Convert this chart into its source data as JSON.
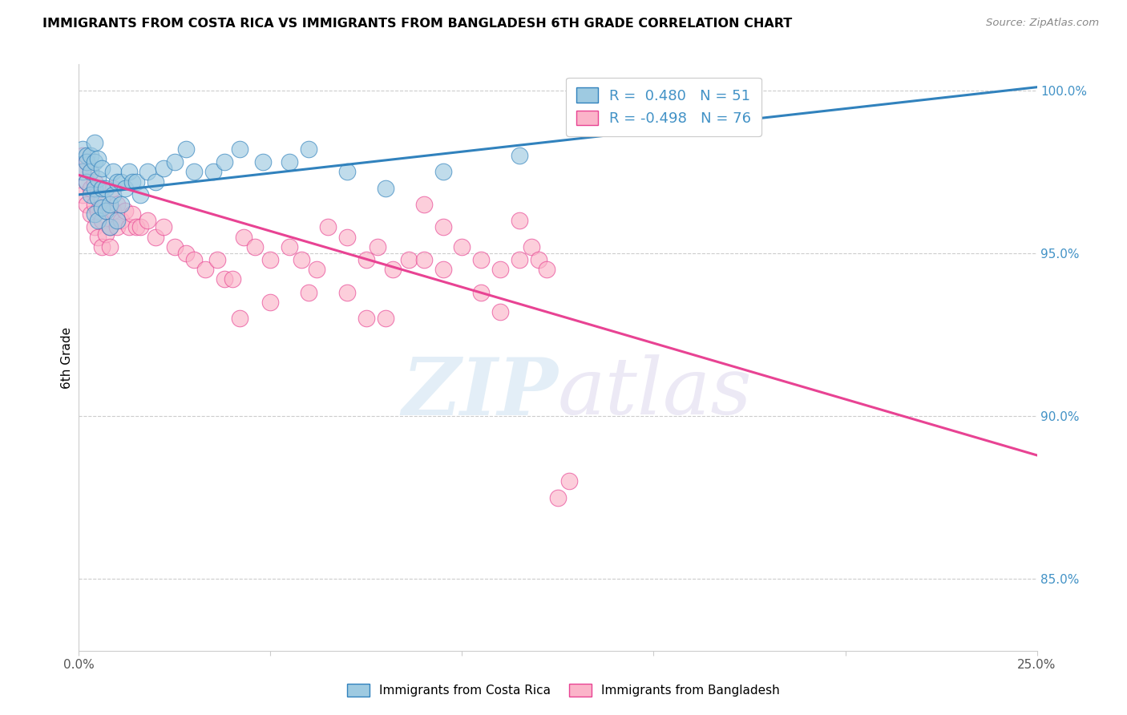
{
  "title": "IMMIGRANTS FROM COSTA RICA VS IMMIGRANTS FROM BANGLADESH 6TH GRADE CORRELATION CHART",
  "source": "Source: ZipAtlas.com",
  "ylabel": "6th Grade",
  "yaxis_values": [
    1.0,
    0.95,
    0.9,
    0.85
  ],
  "xmin": 0.0,
  "xmax": 0.25,
  "ymin": 0.828,
  "ymax": 1.008,
  "legend1_r": "0.480",
  "legend1_n": "51",
  "legend2_r": "-0.498",
  "legend2_n": "76",
  "color_blue": "#9ecae1",
  "color_pink": "#fbb4c9",
  "color_blue_line": "#3182bd",
  "color_pink_line": "#e84393",
  "watermark_zip": "ZIP",
  "watermark_atlas": "atlas",
  "costa_rica_x": [
    0.001,
    0.001,
    0.002,
    0.002,
    0.002,
    0.003,
    0.003,
    0.003,
    0.004,
    0.004,
    0.004,
    0.004,
    0.005,
    0.005,
    0.005,
    0.005,
    0.006,
    0.006,
    0.006,
    0.007,
    0.007,
    0.008,
    0.008,
    0.009,
    0.009,
    0.01,
    0.01,
    0.011,
    0.011,
    0.012,
    0.013,
    0.014,
    0.015,
    0.016,
    0.018,
    0.02,
    0.022,
    0.025,
    0.028,
    0.03,
    0.035,
    0.038,
    0.042,
    0.048,
    0.055,
    0.06,
    0.07,
    0.08,
    0.095,
    0.115,
    0.16
  ],
  "costa_rica_y": [
    0.975,
    0.982,
    0.972,
    0.98,
    0.978,
    0.968,
    0.975,
    0.98,
    0.962,
    0.97,
    0.978,
    0.984,
    0.96,
    0.967,
    0.973,
    0.979,
    0.964,
    0.97,
    0.976,
    0.963,
    0.97,
    0.958,
    0.965,
    0.968,
    0.975,
    0.96,
    0.972,
    0.965,
    0.972,
    0.97,
    0.975,
    0.972,
    0.972,
    0.968,
    0.975,
    0.972,
    0.976,
    0.978,
    0.982,
    0.975,
    0.975,
    0.978,
    0.982,
    0.978,
    0.978,
    0.982,
    0.975,
    0.97,
    0.975,
    0.98,
    0.993
  ],
  "bangladesh_x": [
    0.001,
    0.001,
    0.001,
    0.002,
    0.002,
    0.002,
    0.003,
    0.003,
    0.003,
    0.004,
    0.004,
    0.004,
    0.005,
    0.005,
    0.005,
    0.006,
    0.006,
    0.006,
    0.007,
    0.007,
    0.008,
    0.008,
    0.009,
    0.009,
    0.01,
    0.01,
    0.011,
    0.012,
    0.013,
    0.014,
    0.015,
    0.016,
    0.018,
    0.02,
    0.022,
    0.025,
    0.028,
    0.03,
    0.033,
    0.036,
    0.038,
    0.04,
    0.043,
    0.046,
    0.05,
    0.055,
    0.058,
    0.062,
    0.065,
    0.07,
    0.075,
    0.078,
    0.082,
    0.086,
    0.09,
    0.095,
    0.1,
    0.105,
    0.11,
    0.115,
    0.042,
    0.06,
    0.075,
    0.09,
    0.05,
    0.07,
    0.08,
    0.095,
    0.105,
    0.11,
    0.115,
    0.118,
    0.12,
    0.122,
    0.125,
    0.128
  ],
  "bangladesh_y": [
    0.975,
    0.968,
    0.98,
    0.972,
    0.965,
    0.978,
    0.962,
    0.97,
    0.975,
    0.958,
    0.965,
    0.972,
    0.955,
    0.963,
    0.97,
    0.96,
    0.967,
    0.952,
    0.956,
    0.963,
    0.952,
    0.958,
    0.963,
    0.97,
    0.958,
    0.965,
    0.96,
    0.963,
    0.958,
    0.962,
    0.958,
    0.958,
    0.96,
    0.955,
    0.958,
    0.952,
    0.95,
    0.948,
    0.945,
    0.948,
    0.942,
    0.942,
    0.955,
    0.952,
    0.948,
    0.952,
    0.948,
    0.945,
    0.958,
    0.955,
    0.948,
    0.952,
    0.945,
    0.948,
    0.965,
    0.958,
    0.952,
    0.948,
    0.945,
    0.948,
    0.93,
    0.938,
    0.93,
    0.948,
    0.935,
    0.938,
    0.93,
    0.945,
    0.938,
    0.932,
    0.96,
    0.952,
    0.948,
    0.945,
    0.875,
    0.88
  ]
}
